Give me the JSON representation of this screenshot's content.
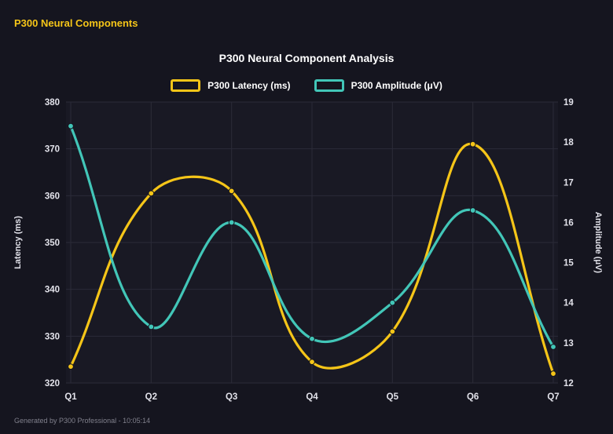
{
  "header": {
    "title": "P300 Neural Components"
  },
  "footer": {
    "note": "Generated by P300 Professional - 10:05:14"
  },
  "colors": {
    "bg": "#15151f",
    "plot_bg": "#191924",
    "grid": "#2b2b38",
    "accent": "#f5c518",
    "text": "#ffffff",
    "tick": "#e2e2ea",
    "muted": "#80808c"
  },
  "chart_data": {
    "type": "line",
    "title": "P300 Neural Component Analysis",
    "categories": [
      "Q1",
      "Q2",
      "Q3",
      "Q4",
      "Q5",
      "Q6",
      "Q7"
    ],
    "series": [
      {
        "name": "P300 Latency (ms)",
        "axis": "left",
        "color": "#f5c518",
        "values": [
          323.5,
          360.5,
          361,
          324.5,
          331,
          371,
          322
        ]
      },
      {
        "name": "P300 Amplitude (μV)",
        "axis": "right",
        "color": "#42c6b8",
        "values": [
          18.4,
          13.4,
          16,
          13.1,
          14,
          16.3,
          12.9
        ]
      }
    ],
    "left_axis": {
      "label": "Latency (ms)",
      "min": 320,
      "max": 380,
      "ticks": [
        320,
        330,
        340,
        350,
        360,
        370,
        380
      ]
    },
    "right_axis": {
      "label": "Amplitude (μV)",
      "min": 12,
      "max": 19,
      "ticks": [
        12,
        13,
        14,
        15,
        16,
        17,
        18,
        19
      ]
    },
    "grid": true,
    "legend_position": "top",
    "line_tension": 0.4
  }
}
